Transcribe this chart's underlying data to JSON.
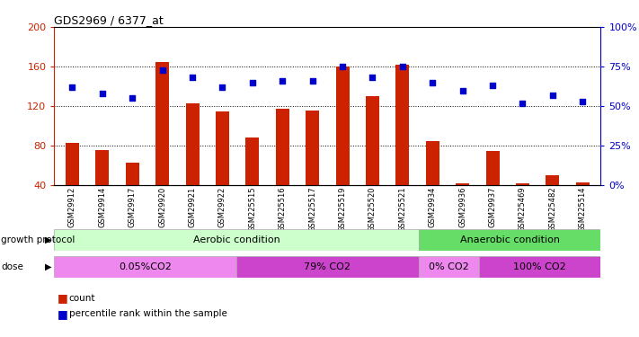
{
  "title": "GDS2969 / 6377_at",
  "samples": [
    "GSM29912",
    "GSM29914",
    "GSM29917",
    "GSM29920",
    "GSM29921",
    "GSM29922",
    "GSM225515",
    "GSM225516",
    "GSM225517",
    "GSM225519",
    "GSM225520",
    "GSM225521",
    "GSM29934",
    "GSM29936",
    "GSM29937",
    "GSM225469",
    "GSM225482",
    "GSM225514"
  ],
  "counts": [
    83,
    76,
    63,
    165,
    123,
    115,
    88,
    117,
    116,
    160,
    130,
    162,
    85,
    42,
    75,
    42,
    50,
    43
  ],
  "percentiles": [
    62,
    58,
    55,
    73,
    68,
    62,
    65,
    66,
    66,
    75,
    68,
    75,
    65,
    60,
    63,
    52,
    57,
    53
  ],
  "ylim_left": [
    40,
    200
  ],
  "ylim_right": [
    0,
    100
  ],
  "yticks_left": [
    40,
    80,
    120,
    160,
    200
  ],
  "yticks_right": [
    0,
    25,
    50,
    75,
    100
  ],
  "bar_color": "#cc2200",
  "dot_color": "#0000cc",
  "aerobic_color": "#ccffcc",
  "anaerobic_color": "#66dd66",
  "dose_light": "#ee88ee",
  "dose_dark": "#cc44cc",
  "growth_label": "growth protocol",
  "dose_label": "dose",
  "aerobic_label": "Aerobic condition",
  "anaerobic_label": "Anaerobic condition",
  "doses_info": [
    {
      "label": "0.05%CO2",
      "start": 0,
      "end": 6,
      "color": "#ee88ee"
    },
    {
      "label": "79% CO2",
      "start": 6,
      "end": 12,
      "color": "#cc44cc"
    },
    {
      "label": "0% CO2",
      "start": 12,
      "end": 14,
      "color": "#ee88ee"
    },
    {
      "label": "100% CO2",
      "start": 14,
      "end": 18,
      "color": "#cc44cc"
    }
  ],
  "aerobic_span": [
    0,
    12
  ],
  "anaerobic_span": [
    12,
    18
  ],
  "grid_yticks": [
    80,
    120,
    160
  ],
  "legend": [
    {
      "label": "count",
      "color": "#cc2200"
    },
    {
      "label": "percentile rank within the sample",
      "color": "#0000cc"
    }
  ]
}
